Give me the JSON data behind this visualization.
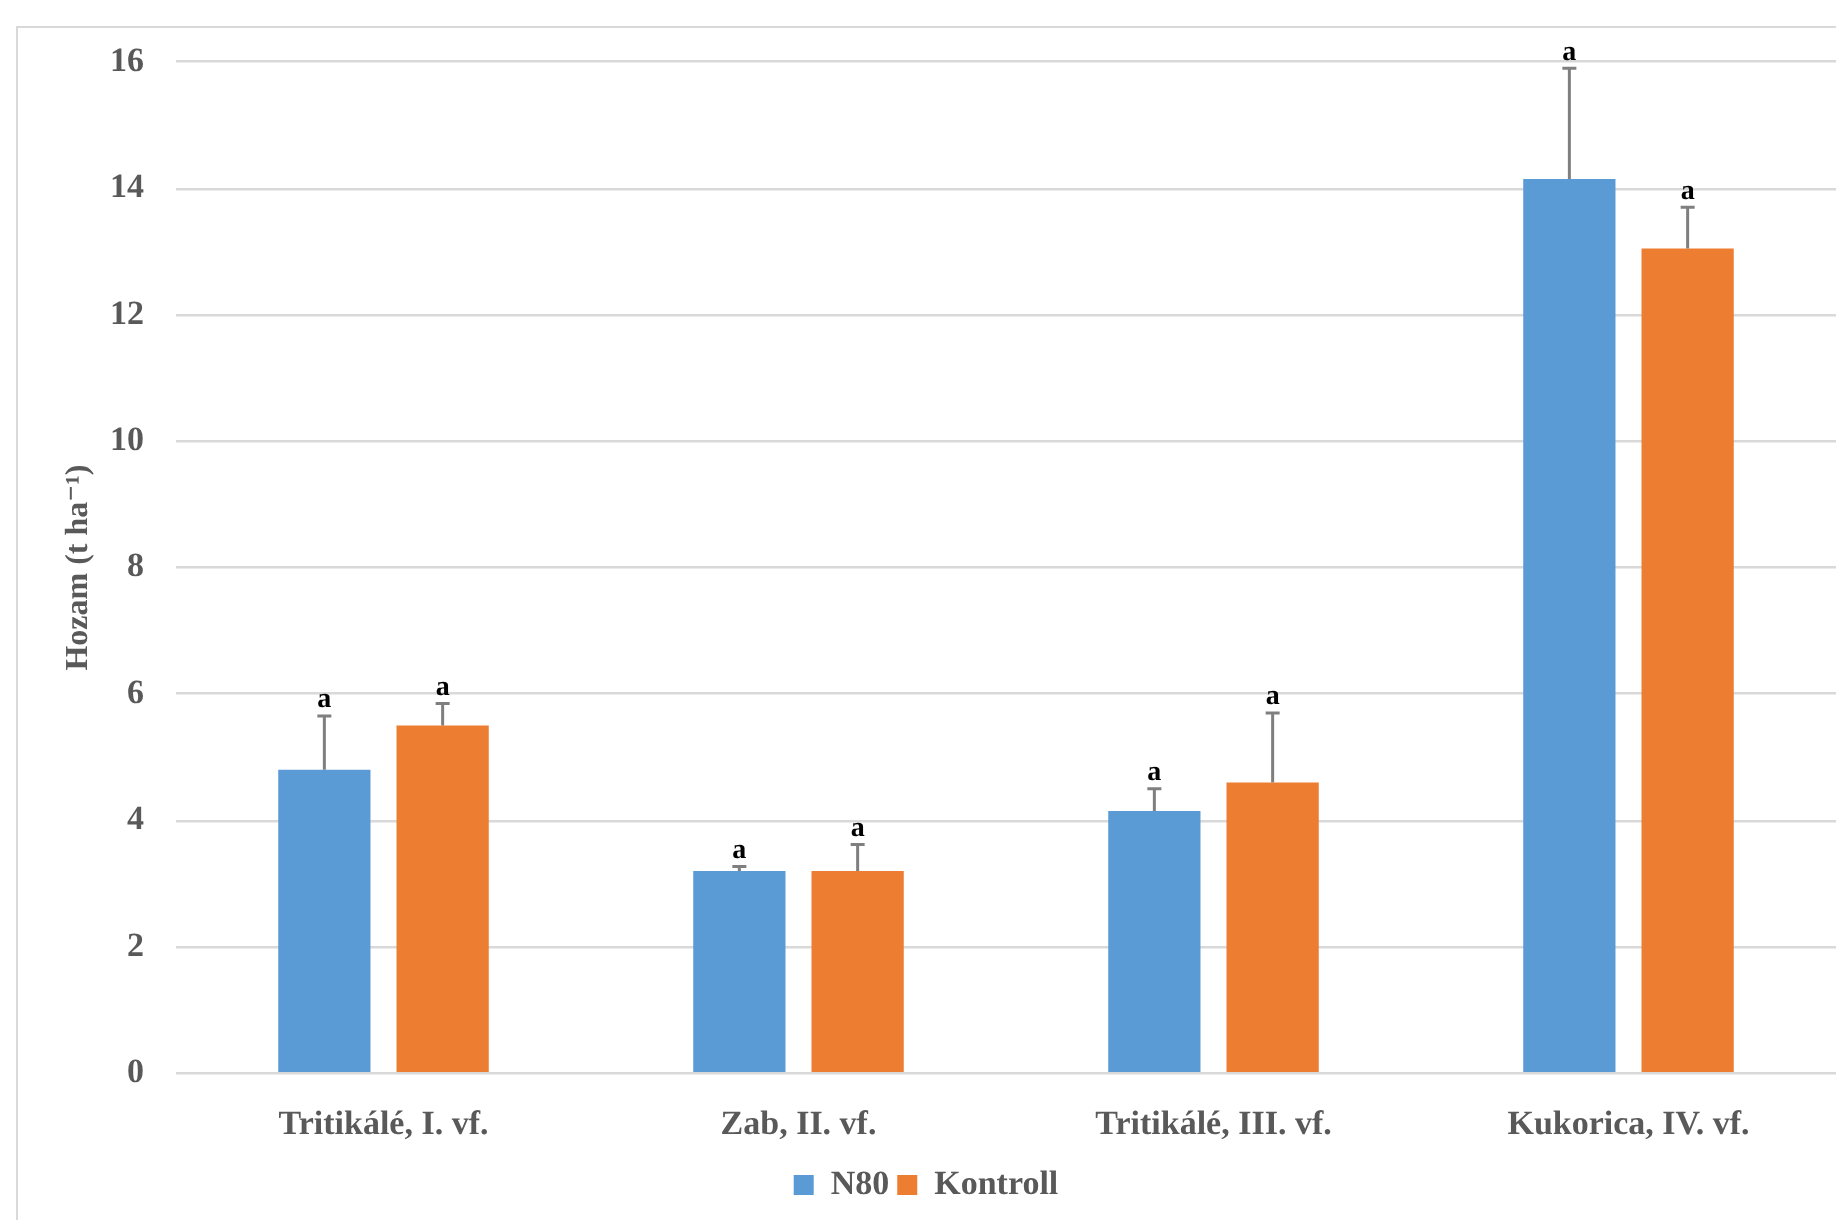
{
  "chart_data": {
    "type": "bar",
    "ylabel": "Hozam (t ha⁻¹)",
    "categories": [
      "Tritikálé, I. vf.",
      "Zab, II. vf.",
      "Tritikálé, III. vf.",
      "Kukorica, IV. vf."
    ],
    "series": [
      {
        "name": "N80",
        "color": "#5b9bd5",
        "values": [
          4.8,
          3.2,
          4.15,
          14.15
        ],
        "errors": [
          [
            4.8,
            5.65
          ],
          [
            3.2,
            3.27
          ],
          [
            4.15,
            4.5
          ],
          [
            14.15,
            15.9
          ]
        ]
      },
      {
        "name": "Kontroll",
        "color": "#ed7d31",
        "values": [
          5.5,
          3.2,
          4.6,
          13.05
        ],
        "errors": [
          [
            5.5,
            5.85
          ],
          [
            3.2,
            3.62
          ],
          [
            4.6,
            5.7
          ],
          [
            13.05,
            13.7
          ]
        ]
      }
    ],
    "ylim": [
      0,
      16
    ],
    "yticks": [
      0,
      2,
      4,
      6,
      8,
      10,
      12,
      14,
      16
    ],
    "grid": "y",
    "legend": "bottom",
    "annotations": [
      "a",
      "a",
      "a",
      "a",
      "a",
      "a",
      "a",
      "a"
    ]
  }
}
